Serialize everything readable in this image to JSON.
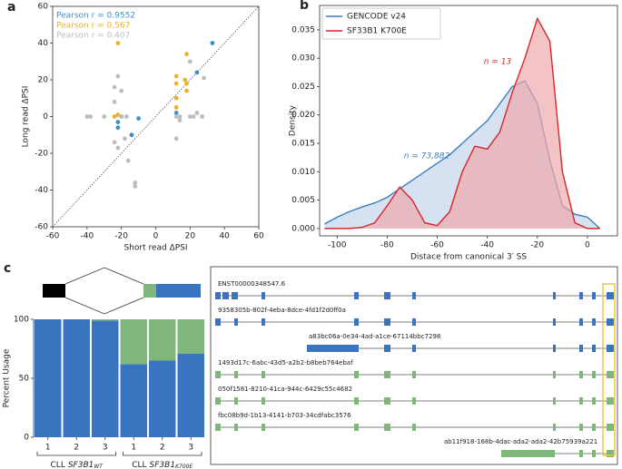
{
  "chart_data": [
    {
      "type": "scatter",
      "panel": "a",
      "xlabel": "Short read ΔPSI",
      "ylabel": "Long read ΔPSI",
      "xlim": [
        -60,
        60
      ],
      "ylim": [
        -60,
        60
      ],
      "xticks": [
        -60,
        -40,
        -20,
        0,
        20,
        40,
        60
      ],
      "yticks": [
        -60,
        -40,
        -20,
        0,
        20,
        40,
        60
      ],
      "series": [
        {
          "name": "Pearson r = 0.9552",
          "color": "#3d8fc4",
          "x": [
            33,
            24,
            12,
            -10,
            -14,
            -22,
            -22
          ],
          "values": [
            40,
            24,
            2,
            -1,
            -10,
            -3,
            -6
          ]
        },
        {
          "name": "Pearson r = 0.567",
          "color": "#e8b32a",
          "x": [
            18,
            -22,
            12,
            12,
            18,
            18,
            -24,
            -22,
            -20,
            12,
            12,
            17
          ],
          "values": [
            34,
            40,
            22,
            18,
            18,
            14,
            0,
            1,
            0,
            10,
            5,
            20
          ]
        },
        {
          "name": "Pearson r = 0.407",
          "color": "#bdbdbd",
          "x": [
            -40,
            -38,
            -30,
            -24,
            -24,
            -22,
            -20,
            -17,
            -16,
            -12,
            -12,
            -22,
            -18,
            12,
            12,
            14,
            20,
            22,
            24,
            27,
            20,
            28,
            14,
            -20,
            -24
          ],
          "values": [
            0,
            0,
            0,
            16,
            8,
            22,
            0,
            0,
            -24,
            -36,
            -38,
            -17,
            -12,
            -12,
            0,
            0,
            0,
            0,
            2,
            0,
            30,
            21,
            -2,
            14,
            -14
          ]
        }
      ]
    },
    {
      "type": "density",
      "panel": "b",
      "xlabel": "Distace from canonical 3′ SS",
      "ylabel": "Density",
      "xlim": [
        -107,
        12
      ],
      "ylim": [
        -0.0013,
        0.0393
      ],
      "xticks": [
        -100,
        -80,
        -60,
        -40,
        -20,
        0
      ],
      "yticks": [
        {
          "value": 0,
          "label": "0.000"
        },
        {
          "value": 0.005,
          "label": "0.005"
        },
        {
          "value": 0.01,
          "label": "0.010"
        },
        {
          "value": 0.015,
          "label": "0.015"
        },
        {
          "value": 0.02,
          "label": "0.020"
        },
        {
          "value": 0.025,
          "label": "0.025"
        },
        {
          "value": 0.03,
          "label": "0.030"
        },
        {
          "value": 0.035,
          "label": "0.035"
        }
      ],
      "legend": "upper left",
      "x": [
        -105,
        -100,
        -95,
        -90,
        -85,
        -80,
        -75,
        -70,
        -65,
        -60,
        -55,
        -50,
        -45,
        -40,
        -35,
        -30,
        -25,
        -20,
        -15,
        -10,
        -5,
        0,
        5
      ],
      "series": [
        {
          "name": "GENCODE v24",
          "color": "#3b7dc0",
          "fill": "#c5d6ec",
          "annotation": "n = 73,882",
          "values": [
            0.0008,
            0.002,
            0.003,
            0.0038,
            0.0045,
            0.0055,
            0.007,
            0.0085,
            0.01,
            0.0115,
            0.013,
            0.015,
            0.017,
            0.019,
            0.022,
            0.025,
            0.026,
            0.022,
            0.012,
            0.004,
            0.0025,
            0.002,
            0.0
          ]
        },
        {
          "name": "SF33B1 K700E",
          "color": "#d62728",
          "fill": "#eea9ad",
          "annotation": "n = 13",
          "values": [
            0,
            0,
            0,
            0.0002,
            0.001,
            0.004,
            0.0073,
            0.005,
            0.001,
            0.0005,
            0.003,
            0.01,
            0.0145,
            0.014,
            0.017,
            0.024,
            0.03,
            0.037,
            0.033,
            0.01,
            0.001,
            0,
            0
          ]
        }
      ]
    },
    {
      "type": "stacked-bar",
      "panel": "c",
      "ylabel": "Percent Usage",
      "ylim": [
        0,
        100
      ],
      "yticks": [
        0,
        50,
        100
      ],
      "categories": [
        "1",
        "2",
        "3",
        "1",
        "2",
        "3"
      ],
      "groups": [
        {
          "name": "CLL",
          "gene": "SF3B1",
          "allele": "WT"
        },
        {
          "name": "CLL",
          "gene": "SF3B1",
          "allele": "K700E"
        }
      ],
      "series": [
        {
          "color": "#3a74c0",
          "values": [
            100,
            100,
            99,
            62,
            65,
            71
          ]
        },
        {
          "color": "#7fb77a",
          "values": [
            0,
            0,
            1,
            38,
            35,
            29
          ]
        }
      ]
    }
  ],
  "transcripts": [
    {
      "label": "ENST00000348547.6",
      "color": "#3a74c0"
    },
    {
      "label": "9358305b-802f-4eba-8dce-4fd1f2d0ff0a",
      "color": "#3a74c0"
    },
    {
      "label": "a83bc06a-0e34-4ad-a1ce-67114bbc7298",
      "color": "#3a74c0"
    },
    {
      "label": "1493d17c-6abc-43d5-a2b2-b8beb764ebaf",
      "color": "#7fb77a"
    },
    {
      "label": "050f1581-8210-41ca-944c-6429c55c4682",
      "color": "#7fb77a"
    },
    {
      "label": "fbc08b9d-1b13-4141-b703-34cdfabc3576",
      "color": "#7fb77a"
    },
    {
      "label": "ab11f918-168b-4dac-ada2-ada2-42b75939a221",
      "color": "#7fb77a"
    }
  ]
}
